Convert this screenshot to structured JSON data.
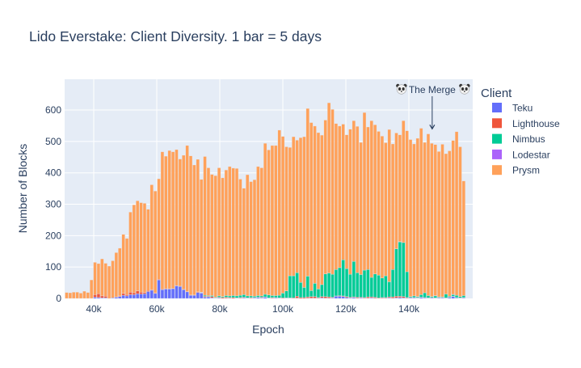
{
  "chart_data": {
    "type": "bar",
    "barmode": "stack",
    "title": "Lido Everstake: Client Diversity. 1 bar = 5 days",
    "xlabel": "Epoch",
    "ylabel": "Number of Blocks",
    "xlim": [
      30770,
      160260
    ],
    "ylim": [
      0,
      698
    ],
    "grid": true,
    "plot_background": "#e5ecf6",
    "x_ticks": [
      {
        "value": 40000,
        "label": "40k"
      },
      {
        "value": 60000,
        "label": "60k"
      },
      {
        "value": 80000,
        "label": "80k"
      },
      {
        "value": 100000,
        "label": "100k"
      },
      {
        "value": 120000,
        "label": "120k"
      },
      {
        "value": 140000,
        "label": "140k"
      }
    ],
    "y_ticks": [
      {
        "value": 0,
        "label": "0"
      },
      {
        "value": 100,
        "label": "100"
      },
      {
        "value": 200,
        "label": "200"
      },
      {
        "value": 300,
        "label": "300"
      },
      {
        "value": 400,
        "label": "400"
      },
      {
        "value": 500,
        "label": "500"
      },
      {
        "value": 600,
        "label": "600"
      }
    ],
    "legend": {
      "title": "Client",
      "placement": "right"
    },
    "annotation": {
      "text": "The Merge",
      "icon": "panda-face-icon",
      "x": 147400,
      "y": 540,
      "arrow": true
    },
    "x": [
      31400,
      32525,
      33650,
      34775,
      35900,
      37025,
      38150,
      39275,
      40400,
      41525,
      42650,
      43775,
      44900,
      46025,
      47150,
      48275,
      49400,
      50525,
      51650,
      52775,
      53900,
      55025,
      56150,
      57275,
      58400,
      59525,
      60650,
      61775,
      62900,
      64025,
      65150,
      66275,
      67400,
      68525,
      69650,
      70775,
      71900,
      73025,
      74150,
      75275,
      76400,
      77525,
      78650,
      79775,
      80900,
      82025,
      83150,
      84275,
      85400,
      86525,
      87650,
      88775,
      89900,
      91025,
      92150,
      93275,
      94400,
      95525,
      96650,
      97775,
      98900,
      100025,
      101150,
      102275,
      103400,
      104525,
      105650,
      106775,
      107900,
      109025,
      110150,
      111275,
      112400,
      113525,
      114650,
      115775,
      116900,
      118025,
      119150,
      120275,
      121400,
      122525,
      123650,
      124775,
      125900,
      127025,
      128150,
      129275,
      130400,
      131525,
      132650,
      133775,
      134900,
      136025,
      137150,
      138275,
      139400,
      140525,
      141650,
      142775,
      143900,
      145025,
      146150,
      147275,
      148400,
      149525,
      150650,
      151775,
      152900,
      154025,
      155150,
      156275,
      157400
    ],
    "series": [
      {
        "name": "Teku",
        "color": "#636efa",
        "values": [
          0,
          0,
          0,
          0,
          0,
          0,
          0,
          0,
          4,
          3,
          2,
          2,
          0,
          2,
          4,
          6,
          10,
          8,
          12,
          12,
          15,
          14,
          15,
          22,
          26,
          16,
          59,
          28,
          30,
          30,
          31,
          40,
          38,
          28,
          21,
          10,
          10,
          19,
          17,
          4,
          5,
          2,
          1,
          2,
          0,
          1,
          1,
          0,
          1,
          1,
          2,
          1,
          1,
          2,
          3,
          2,
          4,
          1,
          1,
          2,
          1,
          0,
          1,
          1,
          0,
          1,
          0,
          0,
          1,
          1,
          1,
          1,
          2,
          1,
          1,
          2,
          7,
          7,
          6,
          3,
          2,
          3,
          1,
          2,
          1,
          1,
          2,
          1,
          0,
          1,
          1,
          2,
          1,
          2,
          3,
          2,
          1,
          2,
          2,
          1,
          3,
          2,
          1,
          2,
          1,
          2,
          2,
          1,
          3,
          6,
          2,
          1,
          2
        ]
      },
      {
        "name": "Lighthouse",
        "color": "#ef553b",
        "values": [
          0,
          0,
          0,
          0,
          0,
          0,
          0,
          0,
          8,
          12,
          6,
          5,
          0,
          0,
          1,
          2,
          6,
          4,
          8,
          6,
          9,
          6,
          4,
          3,
          2,
          2,
          2,
          2,
          1,
          1,
          1,
          1,
          1,
          1,
          1,
          1,
          1,
          2,
          1,
          3,
          2,
          4,
          1,
          2,
          3,
          3,
          2,
          3,
          1,
          2,
          2,
          1,
          2,
          1,
          1,
          2,
          1,
          1,
          2,
          1,
          1,
          2,
          1,
          1,
          2,
          6,
          3,
          3,
          4,
          5,
          5,
          2,
          4,
          5,
          4,
          2,
          1,
          2,
          2,
          3,
          2,
          2,
          3,
          2,
          2,
          4,
          3,
          3,
          2,
          2,
          2,
          3,
          4,
          5,
          4,
          4,
          2,
          1,
          1,
          1,
          1,
          1,
          1,
          1,
          1,
          1,
          1,
          1,
          1,
          1,
          1,
          1,
          1
        ]
      },
      {
        "name": "Nimbus",
        "color": "#00cc96",
        "values": [
          0,
          0,
          0,
          0,
          0,
          0,
          0,
          0,
          0,
          0,
          0,
          0,
          0,
          0,
          0,
          0,
          0,
          0,
          0,
          0,
          0,
          0,
          0,
          0,
          0,
          0,
          0,
          0,
          0,
          0,
          0,
          0,
          0,
          0,
          0,
          0,
          0,
          0,
          1,
          3,
          2,
          3,
          2,
          4,
          3,
          5,
          5,
          6,
          6,
          7,
          8,
          6,
          5,
          4,
          5,
          4,
          8,
          9,
          6,
          6,
          8,
          15,
          22,
          70,
          70,
          75,
          48,
          32,
          66,
          19,
          42,
          27,
          38,
          72,
          76,
          73,
          84,
          89,
          115,
          89,
          73,
          113,
          78,
          72,
          87,
          87,
          62,
          74,
          72,
          62,
          69,
          48,
          87,
          151,
          173,
          172,
          82,
          3,
          5,
          3,
          8,
          15,
          7,
          3,
          6,
          2,
          2,
          12,
          3,
          5,
          7,
          4,
          6
        ]
      },
      {
        "name": "Lodestar",
        "color": "#ab63fa",
        "values": [
          0,
          0,
          0,
          0,
          0,
          0,
          0,
          0,
          0,
          0,
          0,
          0,
          0,
          0,
          0,
          0,
          0,
          0,
          0,
          0,
          0,
          0,
          0,
          0,
          0,
          0,
          0,
          0,
          0,
          0,
          0,
          0,
          0,
          0,
          0,
          0,
          0,
          0,
          1,
          0,
          0,
          0,
          0,
          0,
          0,
          0,
          0,
          0,
          0,
          0,
          0,
          0,
          0,
          0,
          0,
          0,
          0,
          0,
          0,
          0,
          0,
          0,
          0,
          0,
          0,
          0,
          0,
          0,
          0,
          0,
          0,
          0,
          0,
          0,
          0,
          0,
          0,
          0,
          0,
          0,
          0,
          0,
          0,
          0,
          0,
          0,
          0,
          0,
          0,
          0,
          0,
          0,
          0,
          0,
          1,
          0,
          0,
          0,
          0,
          1,
          0,
          0,
          0,
          0,
          1,
          0,
          0,
          0,
          0,
          1,
          0,
          0,
          0
        ]
      },
      {
        "name": "Prysm",
        "color": "#ffa15a",
        "values": [
          19,
          18,
          20,
          20,
          17,
          23,
          19,
          59,
          103,
          96,
          118,
          105,
          103,
          118,
          141,
          152,
          188,
          179,
          255,
          280,
          287,
          285,
          284,
          259,
          334,
          324,
          320,
          437,
          422,
          440,
          435,
          433,
          405,
          427,
          465,
          443,
          414,
          422,
          359,
          442,
          407,
          386,
          387,
          408,
          378,
          400,
          412,
          406,
          406,
          370,
          339,
          386,
          364,
          371,
          411,
          408,
          481,
          462,
          478,
          478,
          526,
          499,
          459,
          409,
          443,
          422,
          461,
          480,
          534,
          535,
          501,
          498,
          476,
          490,
          542,
          525,
          465,
          451,
          432,
          426,
          462,
          448,
          466,
          421,
          502,
          454,
          499,
          475,
          458,
          452,
          424,
          485,
          400,
          369,
          340,
          388,
          449,
          500,
          484,
          504,
          530,
          479,
          515,
          488,
          481,
          463,
          486,
          447,
          463,
          490,
          521,
          477,
          365
        ]
      }
    ]
  }
}
